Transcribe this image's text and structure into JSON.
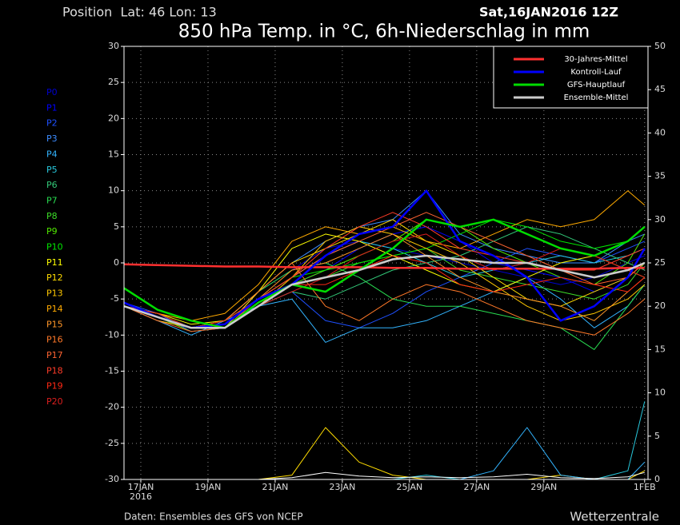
{
  "chart_data": {
    "type": "line",
    "position": "Position  Lat: 46 Lon: 13",
    "run": "Sat,16JAN2016 12Z",
    "title": "850 hPa Temp. in °C, 6h-Niederschlag in mm",
    "source": "Daten: Ensembles des GFS von NCEP",
    "credit": "Wetterzentrale",
    "x": [
      16.5,
      17.5,
      18.5,
      19.5,
      20.5,
      21.5,
      22.5,
      23.5,
      24.5,
      25.5,
      26.5,
      27.5,
      28.5,
      29.5,
      30.5,
      31.5,
      32
    ],
    "xlim": [
      16.5,
      32.1
    ],
    "xticks": [
      {
        "value": 17,
        "label": "17JAN"
      },
      {
        "value": 19,
        "label": "19JAN"
      },
      {
        "value": 21,
        "label": "21JAN"
      },
      {
        "value": 23,
        "label": "23JAN"
      },
      {
        "value": 25,
        "label": "25JAN"
      },
      {
        "value": 27,
        "label": "27JAN"
      },
      {
        "value": 29,
        "label": "29JAN"
      },
      {
        "value": 32,
        "label": "1FEB"
      }
    ],
    "x_year": "2016",
    "ylim": [
      -30,
      30
    ],
    "yticks": [
      -30,
      -25,
      -20,
      -15,
      -10,
      -5,
      0,
      5,
      10,
      15,
      20,
      25,
      30
    ],
    "y2lim": [
      0,
      50
    ],
    "y2ticks": [
      0,
      5,
      10,
      15,
      20,
      25,
      30,
      35,
      40,
      45,
      50
    ],
    "grid": true,
    "members": [
      {
        "name": "P0",
        "color": "#0000cd",
        "values": [
          -6,
          -7.5,
          -9,
          -8,
          -4,
          -1,
          2,
          3,
          2,
          1,
          0,
          -1,
          -2,
          -3,
          -2,
          0,
          1
        ]
      },
      {
        "name": "P1",
        "color": "#0000ff",
        "values": [
          -6,
          -8,
          -9,
          -8,
          -5,
          -3,
          -1,
          2,
          4,
          5,
          3,
          0,
          -1,
          -2,
          -4,
          -2,
          0
        ]
      },
      {
        "name": "P2",
        "color": "#1e50ff",
        "values": [
          -5.5,
          -7,
          -9.5,
          -9,
          -6,
          -4,
          -8,
          -9,
          -7,
          -4,
          -2,
          0,
          2,
          1,
          0,
          2,
          3
        ]
      },
      {
        "name": "P3",
        "color": "#3c8cff",
        "values": [
          -6,
          -7.5,
          -9,
          -9,
          -4,
          0,
          3,
          5,
          6,
          10,
          4,
          2,
          1,
          0,
          0,
          3,
          4
        ]
      },
      {
        "name": "P4",
        "color": "#32b4ff",
        "values": [
          -6,
          -8,
          -10,
          -8,
          -6,
          -5,
          -11,
          -9,
          -9,
          -8,
          -6,
          -4,
          -2,
          -5,
          -9,
          -6,
          -3
        ]
      },
      {
        "name": "P5",
        "color": "#28c8dc",
        "values": [
          -5.5,
          -7.5,
          -9,
          -8,
          -5,
          -2,
          1,
          3,
          2,
          0,
          -2,
          -1,
          0,
          1,
          0,
          1,
          2
        ]
      },
      {
        "name": "P6",
        "color": "#32c878",
        "values": [
          -6,
          -7,
          -9,
          -9,
          -6,
          -4,
          -5,
          -3,
          -1,
          0,
          1,
          3,
          5,
          4,
          2,
          0,
          -1
        ]
      },
      {
        "name": "P7",
        "color": "#28dc50",
        "values": [
          -6,
          -8,
          -9,
          -8,
          -4,
          -1,
          0,
          -2,
          -5,
          -6,
          -6,
          -7,
          -8,
          -9,
          -12,
          -6,
          -3
        ]
      },
      {
        "name": "P8",
        "color": "#3cdc28",
        "values": [
          -5.5,
          -7.5,
          -9,
          -9,
          -5,
          -3,
          -2,
          0,
          1,
          2,
          -1,
          -2,
          -3,
          -4,
          -5,
          -3,
          0
        ]
      },
      {
        "name": "P9",
        "color": "#50e600",
        "values": [
          -6,
          -7.5,
          -9.5,
          -9,
          -6,
          -3,
          -1,
          1,
          3,
          6,
          5,
          2,
          0,
          -2,
          -3,
          0,
          4
        ]
      },
      {
        "name": "P10",
        "color": "#00e600",
        "values": [
          -6,
          -7.5,
          -9,
          -8,
          -5,
          -2,
          -1,
          0,
          1,
          2,
          4,
          6,
          5,
          3,
          2,
          3,
          5
        ]
      },
      {
        "name": "P11",
        "color": "#ffff00",
        "values": [
          -6,
          -7,
          -8.5,
          -8,
          -4,
          2,
          4,
          3,
          1,
          -1,
          -3,
          -4,
          -2,
          0,
          1,
          -1,
          -2
        ]
      },
      {
        "name": "P12",
        "color": "#ffdc00",
        "values": [
          -5.5,
          -7.5,
          -9,
          -9,
          -4,
          0,
          2,
          4,
          6,
          3,
          1,
          -2,
          -5,
          -6,
          -4,
          -2,
          0
        ]
      },
      {
        "name": "P13",
        "color": "#ffc800",
        "values": [
          -6,
          -8,
          -9,
          -9,
          -6,
          -2,
          3,
          5,
          4,
          2,
          0,
          -3,
          -6,
          -8,
          -7,
          -5,
          -3
        ]
      },
      {
        "name": "P14",
        "color": "#ffaa00",
        "values": [
          -6,
          -7,
          -8,
          -7,
          -3,
          3,
          5,
          4,
          5,
          3,
          2,
          4,
          6,
          5,
          6,
          10,
          8
        ]
      },
      {
        "name": "P15",
        "color": "#ff9628",
        "values": [
          -6,
          -7.5,
          -9,
          -9,
          -5,
          -1,
          0,
          2,
          4,
          1,
          -2,
          -4,
          -5,
          -6,
          -8,
          -4,
          -2
        ]
      },
      {
        "name": "P16",
        "color": "#ff7828",
        "values": [
          -5.5,
          -7.5,
          -9,
          -8,
          -4,
          0,
          -6,
          -8,
          -5,
          -3,
          -4,
          -6,
          -8,
          -9,
          -10,
          -7,
          -5
        ]
      },
      {
        "name": "P17",
        "color": "#ff6432",
        "values": [
          -6,
          -8,
          -9.5,
          -9,
          -5,
          -2,
          1,
          3,
          5,
          7,
          5,
          3,
          1,
          -1,
          -3,
          -2,
          0
        ]
      },
      {
        "name": "P18",
        "color": "#ff3c28",
        "values": [
          -6,
          -7.5,
          -9,
          -9,
          -5,
          -2,
          2,
          5,
          7,
          5,
          2,
          1,
          0,
          -1,
          -1,
          1,
          2
        ]
      },
      {
        "name": "P19",
        "color": "#ff2814",
        "values": [
          -6,
          -7,
          -9,
          -8,
          -5,
          -3,
          -3,
          -1,
          1,
          0,
          -3,
          -4,
          -3,
          -2,
          -3,
          -4,
          -2
        ]
      },
      {
        "name": "P20",
        "color": "#dc1e1e",
        "values": [
          -5.5,
          -7.5,
          -9,
          -9,
          -6,
          -4,
          -2,
          1,
          3,
          4,
          1,
          -1,
          0,
          2,
          1,
          -1,
          -2
        ]
      }
    ],
    "series": [
      {
        "name": "30-Jahres-Mittel",
        "color": "#ff3030",
        "values": [
          -0.2,
          -0.3,
          -0.4,
          -0.5,
          -0.5,
          -0.6,
          -0.6,
          -0.6,
          -0.7,
          -0.7,
          -0.8,
          -0.8,
          -0.8,
          -0.8,
          -0.8,
          -0.7,
          -0.7
        ]
      },
      {
        "name": "Kontroll-Lauf",
        "color": "#0000ff",
        "values": [
          -5.5,
          -7.5,
          -9,
          -8.5,
          -5,
          -3,
          1,
          4,
          5,
          10,
          3,
          1,
          -2,
          -8,
          -6,
          -2,
          2
        ]
      },
      {
        "name": "GFS-Hauptlauf",
        "color": "#00dd00",
        "values": [
          -3.5,
          -6.5,
          -8,
          -9,
          -5.5,
          -3,
          -4,
          -1,
          2,
          6,
          5,
          6,
          4,
          2,
          1,
          3,
          5
        ]
      },
      {
        "name": "Ensemble-Mittel",
        "color": "#cccccc",
        "values": [
          -6,
          -7.5,
          -9,
          -9,
          -6,
          -3,
          -2,
          -1,
          0.5,
          1,
          0.5,
          0,
          0,
          -1,
          -2,
          -1,
          0
        ]
      }
    ],
    "precip": [
      {
        "color": "#ffdc00",
        "axis": "y2",
        "values": [
          0,
          0,
          0,
          0,
          0,
          0.5,
          6,
          2,
          0.5,
          0,
          0,
          0,
          0,
          0.5,
          0,
          0,
          1
        ]
      },
      {
        "color": "#32b4ff",
        "axis": "y2",
        "values": [
          0,
          0,
          0,
          0,
          0,
          0,
          0,
          0,
          0,
          0,
          0,
          1,
          6,
          0.5,
          0,
          0,
          2
        ]
      },
      {
        "color": "#28c8dc",
        "axis": "y2",
        "values": [
          0,
          0,
          0,
          0,
          0,
          0,
          0,
          0,
          0,
          0.5,
          0,
          0,
          0,
          0,
          0,
          1,
          9
        ]
      },
      {
        "color": "#ffffff",
        "axis": "y2",
        "values": [
          0,
          0,
          0,
          0,
          0,
          0.2,
          0.8,
          0.4,
          0.2,
          0.3,
          0.2,
          0.3,
          0.6,
          0.2,
          0.1,
          0.3,
          0.8
        ]
      }
    ]
  }
}
